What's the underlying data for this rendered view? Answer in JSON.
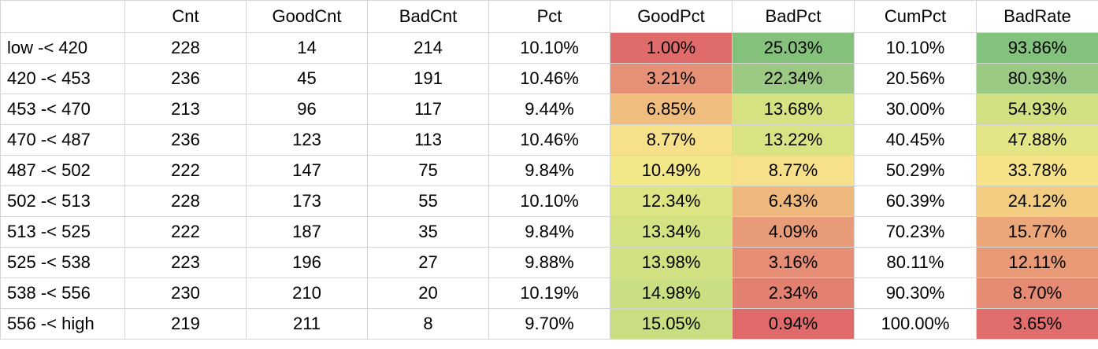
{
  "columns": [
    "",
    "Cnt",
    "GoodCnt",
    "BadCnt",
    "Pct",
    "GoodPct",
    "BadPct",
    "CumPct",
    "BadRate"
  ],
  "rows": [
    {
      "bin": "low -< 420",
      "cnt": "228",
      "good_cnt": "14",
      "bad_cnt": "214",
      "pct": "10.10%",
      "good_pct": "1.00%",
      "bad_pct": "25.03%",
      "cum_pct": "10.10%",
      "bad_rate": "93.86%",
      "colors": {
        "good_pct": "#e06b6b",
        "bad_pct": "#84c27b",
        "bad_rate": "#82c27c"
      }
    },
    {
      "bin": "420 -< 453",
      "cnt": "236",
      "good_cnt": "45",
      "bad_cnt": "191",
      "pct": "10.46%",
      "good_pct": "3.21%",
      "bad_pct": "22.34%",
      "cum_pct": "20.56%",
      "bad_rate": "80.93%",
      "colors": {
        "good_pct": "#e69077",
        "bad_pct": "#9bc882",
        "bad_rate": "#9ac983"
      }
    },
    {
      "bin": "453 -< 470",
      "cnt": "213",
      "good_cnt": "96",
      "bad_cnt": "117",
      "pct": "9.44%",
      "good_pct": "6.85%",
      "bad_pct": "13.68%",
      "cum_pct": "30.00%",
      "bad_rate": "54.93%",
      "colors": {
        "good_pct": "#efbe7f",
        "bad_pct": "#d6e282",
        "bad_rate": "#d2e082"
      }
    },
    {
      "bin": "470 -< 487",
      "cnt": "236",
      "good_cnt": "123",
      "bad_cnt": "113",
      "pct": "10.46%",
      "good_pct": "8.77%",
      "bad_pct": "13.22%",
      "cum_pct": "40.45%",
      "bad_rate": "47.88%",
      "colors": {
        "good_pct": "#f6e08a",
        "bad_pct": "#d9e384",
        "bad_rate": "#e3e587"
      }
    },
    {
      "bin": "487 -< 502",
      "cnt": "222",
      "good_cnt": "147",
      "bad_cnt": "75",
      "pct": "9.84%",
      "good_pct": "10.49%",
      "bad_pct": "8.77%",
      "cum_pct": "50.29%",
      "bad_rate": "33.78%",
      "colors": {
        "good_pct": "#f2e88a",
        "bad_pct": "#f6e08a",
        "bad_rate": "#f6e389"
      }
    },
    {
      "bin": "502 -< 513",
      "cnt": "228",
      "good_cnt": "173",
      "bad_cnt": "55",
      "pct": "10.10%",
      "good_pct": "12.34%",
      "bad_pct": "6.43%",
      "cum_pct": "60.39%",
      "bad_rate": "24.12%",
      "colors": {
        "good_pct": "#dde484",
        "bad_pct": "#efb87d",
        "bad_rate": "#f2cc81"
      }
    },
    {
      "bin": "513 -< 525",
      "cnt": "222",
      "good_cnt": "187",
      "bad_cnt": "35",
      "pct": "9.84%",
      "good_pct": "13.34%",
      "bad_pct": "4.09%",
      "cum_pct": "70.23%",
      "bad_rate": "15.77%",
      "colors": {
        "good_pct": "#d5e283",
        "bad_pct": "#e89b78",
        "bad_rate": "#eba679"
      }
    },
    {
      "bin": "525 -< 538",
      "cnt": "223",
      "good_cnt": "196",
      "bad_cnt": "27",
      "pct": "9.88%",
      "good_pct": "13.98%",
      "bad_pct": "3.16%",
      "cum_pct": "80.11%",
      "bad_rate": "12.11%",
      "colors": {
        "good_pct": "#d2e082",
        "bad_pct": "#e68d75",
        "bad_rate": "#e89a77"
      }
    },
    {
      "bin": "538 -< 556",
      "cnt": "230",
      "good_cnt": "210",
      "bad_cnt": "20",
      "pct": "10.19%",
      "good_pct": "14.98%",
      "bad_pct": "2.34%",
      "cum_pct": "90.30%",
      "bad_rate": "8.70%",
      "colors": {
        "good_pct": "#cadf81",
        "bad_pct": "#e38171",
        "bad_rate": "#e68b73"
      }
    },
    {
      "bin": "556 -< high",
      "cnt": "219",
      "good_cnt": "211",
      "bad_cnt": "8",
      "pct": "9.70%",
      "good_pct": "15.05%",
      "bad_pct": "0.94%",
      "cum_pct": "100.00%",
      "bad_rate": "3.65%",
      "colors": {
        "good_pct": "#c9de80",
        "bad_pct": "#e06a6a",
        "bad_rate": "#e16e6c"
      }
    }
  ]
}
